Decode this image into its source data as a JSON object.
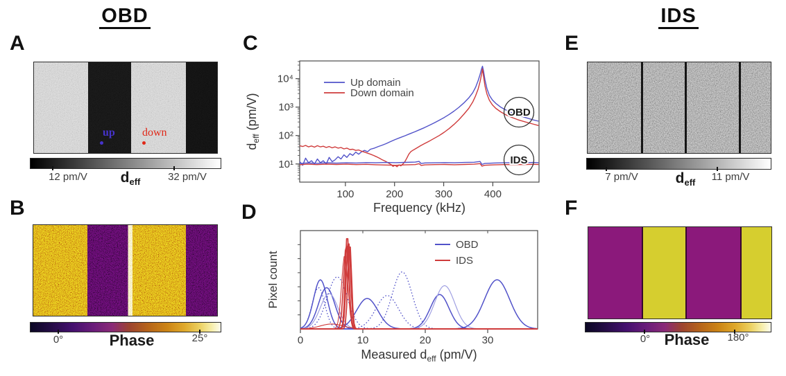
{
  "figure": {
    "title_left": "OBD",
    "title_right": "IDS"
  },
  "panels": {
    "a": {
      "letter": "A",
      "up_annotation": "up",
      "down_annotation": "down",
      "colorbar": {
        "min": "12 pm/V",
        "max": "32 pm/V",
        "title_main": "d",
        "title_sub": "eff"
      }
    },
    "b": {
      "letter": "B",
      "colorbar": {
        "min": "0°",
        "max": "25°",
        "title": "Phase"
      }
    },
    "c": {
      "letter": "C"
    },
    "d": {
      "letter": "D"
    },
    "e": {
      "letter": "E",
      "colorbar": {
        "min": "7 pm/V",
        "max": "11 pm/V",
        "title_main": "d",
        "title_sub": "eff"
      }
    },
    "f": {
      "letter": "F",
      "colorbar": {
        "min": "0°",
        "max": "180°",
        "title": "Phase"
      }
    }
  },
  "colors": {
    "up_blue": "#5152c9",
    "down_red": "#cf3b3b",
    "light_blue": "#a0a0e2",
    "annotation_blue": "#4633cc",
    "annotation_red": "#e02818",
    "a_light_stripe": "#c9c9c9",
    "a_dark_stripe": "#141414",
    "b_orange": "#cd8a14",
    "b_purple": "#47094f",
    "b_domain_wall": "#f4e9a8",
    "e_gray": "#8f8f8f",
    "f_purple": "#8b197b",
    "f_yellow": "#d6ce2f"
  },
  "chart_data": [
    {
      "id": "c-frequency-response",
      "type": "line",
      "xlabel": "Frequency (kHz)",
      "ylabel": "d_eff (pm/V)",
      "ylabel_parts": [
        {
          "t": "d"
        },
        {
          "t": "eff",
          "sub": true
        },
        {
          "t": " (pm/V)"
        }
      ],
      "xlim": [
        7,
        494
      ],
      "xticks": [
        100,
        200,
        300,
        400
      ],
      "yscale": "log",
      "ylim": [
        2.3,
        42000
      ],
      "yticks": [
        10,
        100,
        1000,
        10000
      ],
      "ytick_labels": [
        "10¹",
        "10²",
        "10³",
        "10⁴"
      ],
      "grid": false,
      "legend_position": "upper-left",
      "legend": [
        {
          "label": "Up domain",
          "style": "blue-solid"
        },
        {
          "label": "Down domain",
          "style": "red-solid"
        }
      ],
      "ring_annotations": [
        "OBD",
        "IDS"
      ],
      "series": [
        {
          "name": "OBD up domain",
          "style": "blue-solid",
          "points": [
            [
              7,
              12
            ],
            [
              13,
              9
            ],
            [
              19,
              16
            ],
            [
              25,
              11
            ],
            [
              31,
              13
            ],
            [
              37,
              10
            ],
            [
              43,
              15
            ],
            [
              49,
              11
            ],
            [
              55,
              13
            ],
            [
              61,
              10
            ],
            [
              67,
              17
            ],
            [
              73,
              12
            ],
            [
              79,
              14
            ],
            [
              85,
              18
            ],
            [
              91,
              15
            ],
            [
              97,
              21
            ],
            [
              103,
              17
            ],
            [
              109,
              23
            ],
            [
              115,
              20
            ],
            [
              121,
              26
            ],
            [
              127,
              22
            ],
            [
              133,
              27
            ],
            [
              139,
              30
            ],
            [
              145,
              27
            ],
            [
              151,
              33
            ],
            [
              159,
              36
            ],
            [
              167,
              41
            ],
            [
              175,
              46
            ],
            [
              183,
              52
            ],
            [
              191,
              60
            ],
            [
              201,
              72
            ],
            [
              211,
              84
            ],
            [
              221,
              98
            ],
            [
              231,
              115
            ],
            [
              241,
              135
            ],
            [
              251,
              160
            ],
            [
              261,
              190
            ],
            [
              271,
              230
            ],
            [
              281,
              280
            ],
            [
              291,
              345
            ],
            [
              301,
              430
            ],
            [
              311,
              550
            ],
            [
              321,
              720
            ],
            [
              331,
              980
            ],
            [
              341,
              1400
            ],
            [
              351,
              2100
            ],
            [
              359,
              3200
            ],
            [
              365,
              5000
            ],
            [
              370,
              8500
            ],
            [
              374,
              14000
            ],
            [
              377,
              22000
            ],
            [
              379,
              27500
            ],
            [
              381,
              19000
            ],
            [
              384,
              9000
            ],
            [
              388,
              4500
            ],
            [
              393,
              2600
            ],
            [
              399,
              1800
            ],
            [
              406,
              1350
            ],
            [
              416,
              1000
            ],
            [
              426,
              800
            ],
            [
              436,
              660
            ],
            [
              451,
              520
            ],
            [
              466,
              430
            ],
            [
              481,
              360
            ],
            [
              493,
              320
            ]
          ]
        },
        {
          "name": "OBD down domain",
          "style": "red-solid",
          "points": [
            [
              7,
              44
            ],
            [
              13,
              41
            ],
            [
              19,
              45
            ],
            [
              25,
              40
            ],
            [
              31,
              43
            ],
            [
              37,
              39
            ],
            [
              43,
              44
            ],
            [
              49,
              40
            ],
            [
              55,
              42
            ],
            [
              61,
              38
            ],
            [
              67,
              41
            ],
            [
              73,
              37
            ],
            [
              79,
              40
            ],
            [
              85,
              36
            ],
            [
              91,
              38
            ],
            [
              97,
              34
            ],
            [
              103,
              36
            ],
            [
              109,
              32
            ],
            [
              115,
              33
            ],
            [
              121,
              30
            ],
            [
              127,
              31
            ],
            [
              133,
              28
            ],
            [
              139,
              26
            ],
            [
              145,
              24
            ],
            [
              151,
              22
            ],
            [
              157,
              20
            ],
            [
              163,
              18
            ],
            [
              169,
              16
            ],
            [
              175,
              14
            ],
            [
              181,
              12.5
            ],
            [
              187,
              11
            ],
            [
              193,
              9.5
            ],
            [
              197,
              8.2
            ],
            [
              201,
              9
            ],
            [
              205,
              8
            ],
            [
              209,
              9.3
            ],
            [
              213,
              8.6
            ],
            [
              217,
              10
            ],
            [
              221,
              12
            ],
            [
              225,
              16
            ],
            [
              229,
              22
            ],
            [
              233,
              27
            ],
            [
              237,
              30
            ],
            [
              241,
              33
            ],
            [
              247,
              38
            ],
            [
              253,
              44
            ],
            [
              261,
              52
            ],
            [
              271,
              64
            ],
            [
              281,
              80
            ],
            [
              291,
              100
            ],
            [
              301,
              130
            ],
            [
              311,
              175
            ],
            [
              321,
              245
            ],
            [
              331,
              360
            ],
            [
              341,
              560
            ],
            [
              351,
              900
            ],
            [
              359,
              1500
            ],
            [
              365,
              2500
            ],
            [
              370,
              4300
            ],
            [
              374,
              7800
            ],
            [
              377,
              14000
            ],
            [
              379,
              22000
            ],
            [
              381,
              12500
            ],
            [
              384,
              5500
            ],
            [
              388,
              2900
            ],
            [
              393,
              1750
            ],
            [
              399,
              1200
            ],
            [
              406,
              900
            ],
            [
              416,
              680
            ],
            [
              426,
              540
            ],
            [
              436,
              450
            ],
            [
              451,
              360
            ],
            [
              466,
              300
            ],
            [
              481,
              255
            ],
            [
              493,
              225
            ]
          ]
        },
        {
          "name": "IDS up domain",
          "style": "blue-solid",
          "points": [
            [
              7,
              10.4
            ],
            [
              22,
              10.9
            ],
            [
              42,
              10.5
            ],
            [
              62,
              11
            ],
            [
              82,
              10.7
            ],
            [
              102,
              11
            ],
            [
              122,
              10.8
            ],
            [
              142,
              11.2
            ],
            [
              162,
              11
            ],
            [
              182,
              11.3
            ],
            [
              202,
              11.1
            ],
            [
              222,
              11.4
            ],
            [
              242,
              11.6
            ],
            [
              250,
              12.3
            ],
            [
              254,
              10.4
            ],
            [
              262,
              10.9
            ],
            [
              282,
              11
            ],
            [
              302,
              11.2
            ],
            [
              322,
              11
            ],
            [
              342,
              11.3
            ],
            [
              362,
              11.5
            ],
            [
              374,
              12.2
            ],
            [
              378,
              9.6
            ],
            [
              383,
              10.4
            ],
            [
              402,
              10.8
            ],
            [
              422,
              11
            ],
            [
              442,
              11.2
            ],
            [
              462,
              11
            ],
            [
              482,
              11.3
            ],
            [
              493,
              11.1
            ]
          ]
        },
        {
          "name": "IDS down domain",
          "style": "red-solid",
          "points": [
            [
              7,
              9.4
            ],
            [
              22,
              9.8
            ],
            [
              42,
              9.5
            ],
            [
              62,
              9.9
            ],
            [
              82,
              9.6
            ],
            [
              102,
              9.8
            ],
            [
              122,
              9.5
            ],
            [
              142,
              9.7
            ],
            [
              162,
              9.4
            ],
            [
              182,
              9.2
            ],
            [
              202,
              9
            ],
            [
              222,
              9.3
            ],
            [
              242,
              9.5
            ],
            [
              250,
              10.2
            ],
            [
              254,
              8.9
            ],
            [
              262,
              9.3
            ],
            [
              282,
              9.5
            ],
            [
              302,
              9.6
            ],
            [
              322,
              9.4
            ],
            [
              342,
              9.6
            ],
            [
              362,
              9.8
            ],
            [
              374,
              10.3
            ],
            [
              378,
              8.4
            ],
            [
              383,
              9
            ],
            [
              402,
              9.3
            ],
            [
              422,
              9.5
            ],
            [
              442,
              9.6
            ],
            [
              462,
              9.5
            ],
            [
              482,
              9.7
            ],
            [
              493,
              9.6
            ]
          ]
        }
      ]
    },
    {
      "id": "d-histograms",
      "type": "line",
      "xlabel": "Measured d_eff (pm/V)",
      "xlabel_parts": [
        {
          "t": "Measured d"
        },
        {
          "t": "eff",
          "sub": true
        },
        {
          "t": " (pm/V)"
        }
      ],
      "ylabel": "Pixel count",
      "xlim": [
        0,
        38
      ],
      "xticks": [
        0,
        10,
        20,
        30
      ],
      "ylim": [
        0,
        1
      ],
      "grid": false,
      "legend_position": "upper-right",
      "legend": [
        {
          "label": "OBD",
          "style": "blue-solid"
        },
        {
          "label": "IDS",
          "style": "red-solid"
        }
      ],
      "curves": [
        {
          "style": "blue-dotted",
          "center": 2.9,
          "sigma": 1.0,
          "height": 0.42
        },
        {
          "style": "blue-solid",
          "center": 3.2,
          "sigma": 1.1,
          "height": 0.5
        },
        {
          "style": "blue-solid",
          "center": 4.2,
          "sigma": 1.3,
          "height": 0.42
        },
        {
          "style": "blue-light",
          "center": 4.6,
          "sigma": 1.4,
          "height": 0.36
        },
        {
          "style": "blue-dotted",
          "center": 5.9,
          "sigma": 1.6,
          "height": 0.53
        },
        {
          "style": "blue-solid",
          "center": 10.7,
          "sigma": 1.7,
          "height": 0.31
        },
        {
          "style": "blue-dotted",
          "center": 13.9,
          "sigma": 1.8,
          "height": 0.34
        },
        {
          "style": "blue-dotted",
          "center": 16.3,
          "sigma": 1.6,
          "height": 0.58
        },
        {
          "style": "blue-solid",
          "center": 22.3,
          "sigma": 1.5,
          "height": 0.35
        },
        {
          "style": "blue-light",
          "center": 23.1,
          "sigma": 1.6,
          "height": 0.44
        },
        {
          "style": "blue-solid",
          "center": 31.5,
          "sigma": 2.0,
          "height": 0.5
        },
        {
          "style": "red-thin",
          "center": 5.0,
          "sigma": 1.8,
          "height": 0.05
        },
        {
          "style": "red-thin",
          "center": 7.1,
          "sigma": 0.5,
          "height": 0.75
        },
        {
          "style": "red-solid",
          "center": 7.35,
          "sigma": 0.42,
          "height": 0.85
        },
        {
          "style": "red-solid",
          "center": 7.5,
          "sigma": 0.3,
          "height": 0.97
        },
        {
          "style": "red-solid",
          "center": 7.7,
          "sigma": 0.35,
          "height": 0.9
        },
        {
          "style": "red-solid",
          "center": 7.9,
          "sigma": 0.3,
          "height": 0.88
        }
      ]
    }
  ]
}
